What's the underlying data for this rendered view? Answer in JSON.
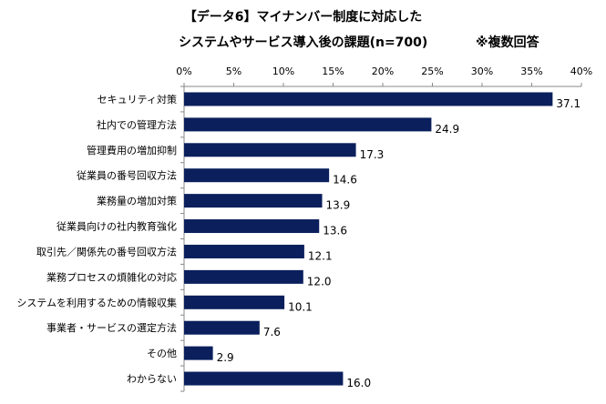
{
  "chart_data": {
    "type": "bar",
    "orientation": "horizontal",
    "title": "【データ6】マイナンバー制度に対応した",
    "subtitle": "システムやサービス導入後の課題(n=700)",
    "note": "※複数回答",
    "categories": [
      "セキュリティ対策",
      "社内での管理方法",
      "管理費用の増加抑制",
      "従業員の番号回収方法",
      "業務量の増加対策",
      "従業員向けの社内教育強化",
      "取引先／関係先の番号回収方法",
      "業務プロセスの煩雑化の対応",
      "システムを利用するための情報収集",
      "事業者・サービスの選定方法",
      "その他",
      "わからない"
    ],
    "values": [
      37.1,
      24.9,
      17.3,
      14.6,
      13.9,
      13.6,
      12.1,
      12.0,
      10.1,
      7.6,
      2.9,
      16.0
    ],
    "value_labels": [
      "37.1",
      "24.9",
      "17.3",
      "14.6",
      "13.9",
      "13.6",
      "12.1",
      "12.0",
      "10.1",
      "7.6",
      "2.9",
      "16.0"
    ],
    "x_ticks": [
      "0%",
      "5%",
      "10%",
      "15%",
      "20%",
      "25%",
      "30%",
      "35%",
      "40%"
    ],
    "xlim": [
      0,
      40
    ],
    "x_axis_position": "top",
    "grid": false,
    "legend": "none",
    "bar_color": "#0a1f5c"
  }
}
